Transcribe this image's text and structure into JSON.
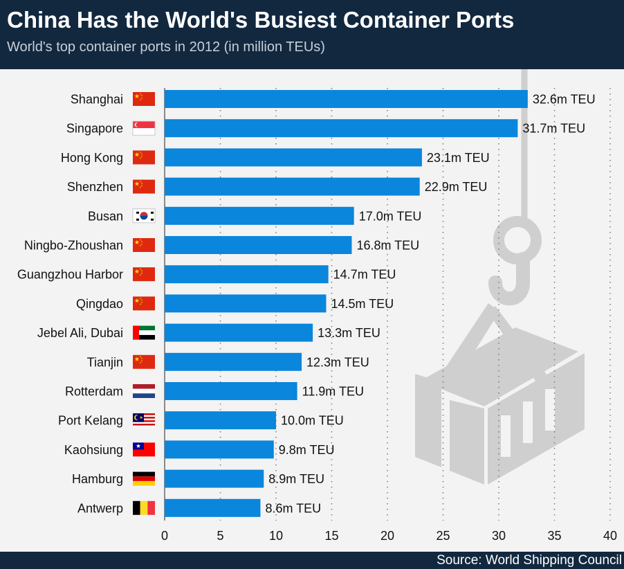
{
  "header": {
    "title": "China Has the World's Busiest Container Ports",
    "subtitle": "World's top container ports in 2012 (in million TEUs)"
  },
  "footer": {
    "source": "Source: World Shipping Council"
  },
  "colors": {
    "bar": "#0a86dc",
    "header_bg": "#12283f",
    "background": "#f3f3f3",
    "illustration": "#cfcfcf"
  },
  "illustration": {
    "icon": "shipping-container-crane-hook-icon"
  },
  "chart_data": {
    "type": "bar",
    "orientation": "horizontal",
    "title": "China Has the World's Busiest Container Ports",
    "subtitle": "World's top container ports in 2012 (in million TEUs)",
    "categories": [
      "Shanghai",
      "Singapore",
      "Hong Kong",
      "Shenzhen",
      "Busan",
      "Ningbo-Zhoushan",
      "Guangzhou Harbor",
      "Qingdao",
      "Jebel Ali, Dubai",
      "Tianjin",
      "Rotterdam",
      "Port Kelang",
      "Kaohsiung",
      "Hamburg",
      "Antwerp"
    ],
    "flags": [
      "china",
      "singapore",
      "china",
      "china",
      "south-korea",
      "china",
      "china",
      "china",
      "uae",
      "china",
      "netherlands",
      "malaysia",
      "taiwan",
      "germany",
      "belgium"
    ],
    "values": [
      32.6,
      31.7,
      23.1,
      22.9,
      17.0,
      16.8,
      14.7,
      14.5,
      13.3,
      12.3,
      11.9,
      10.0,
      9.8,
      8.9,
      8.6
    ],
    "value_labels": [
      "32.6m TEU",
      "31.7m TEU",
      "23.1m TEU",
      "22.9m TEU",
      "17.0m TEU",
      "16.8m TEU",
      "14.7m TEU",
      "14.5m TEU",
      "13.3m TEU",
      "12.3m TEU",
      "11.9m TEU",
      "10.0m TEU",
      "9.8m TEU",
      "8.9m TEU",
      "8.6m TEU"
    ],
    "xlim": [
      0,
      40
    ],
    "xticks": [
      0,
      5,
      10,
      15,
      20,
      25,
      30,
      35,
      40
    ],
    "grid": "vertical-dotted",
    "xlabel": "",
    "ylabel": ""
  }
}
